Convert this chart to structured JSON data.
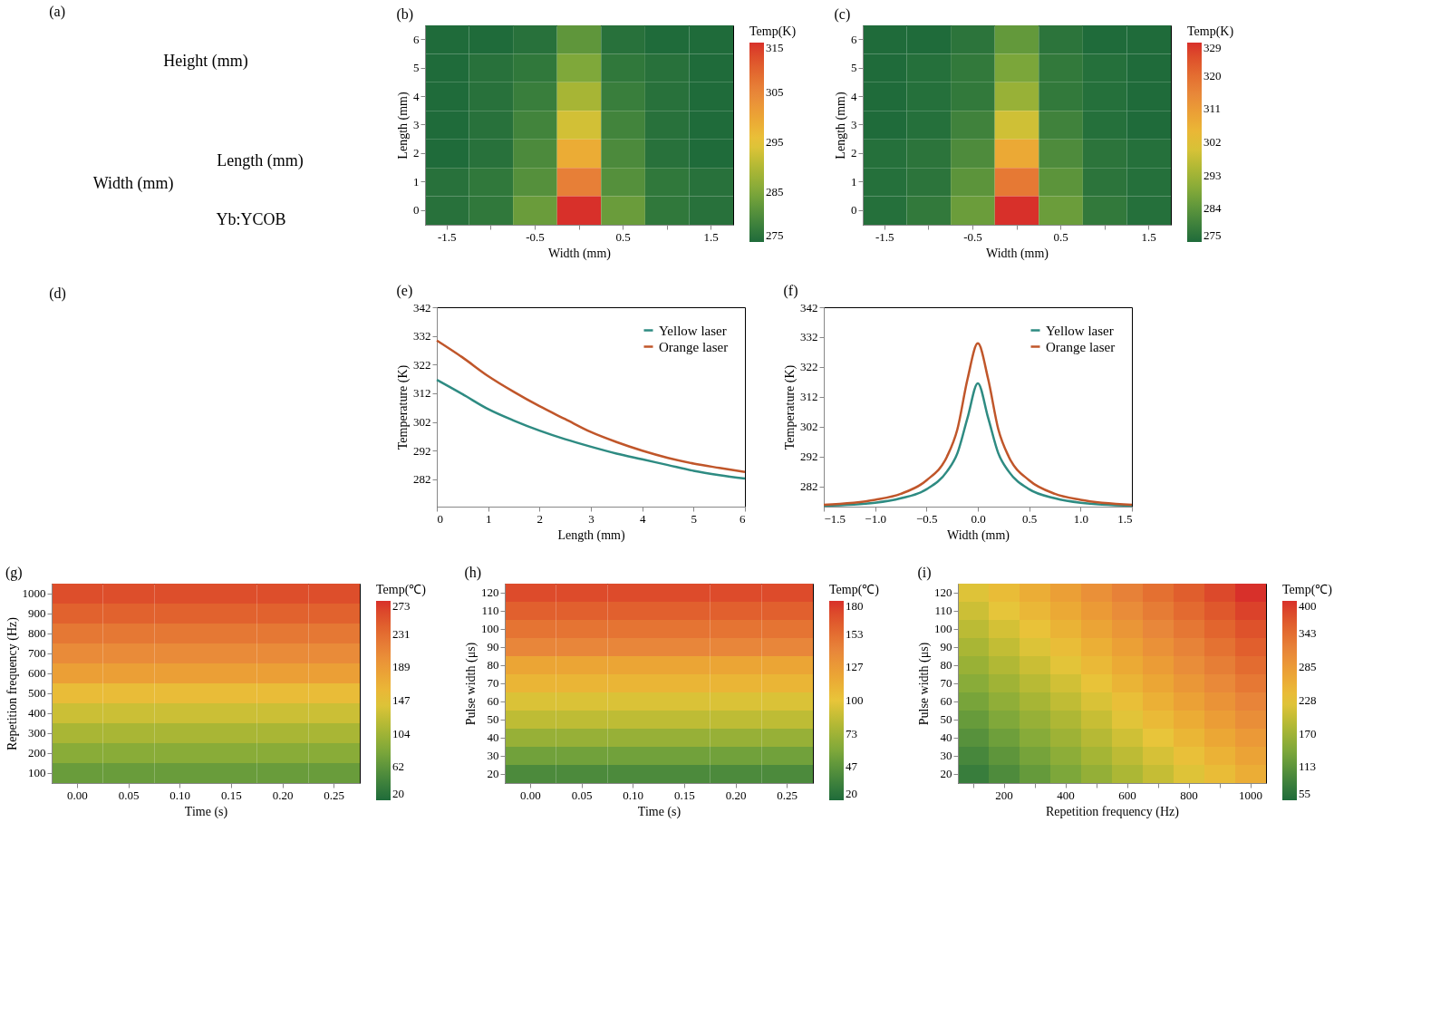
{
  "chart_data": [
    {
      "type": "other",
      "title": "(a)",
      "annotations": [
        "Height (mm)",
        "Length (mm)",
        "Width (mm)",
        "Yb:YCOB"
      ]
    },
    {
      "type": "heatmap",
      "title": "(b)",
      "xlabel": "Width (mm)",
      "ylabel": "Length (mm)",
      "clabel": "Temp(K)",
      "categories": [
        "-1.5",
        null,
        "-0.5",
        null,
        "0.5",
        null,
        "1.5"
      ],
      "y_categories": [
        "6",
        "5",
        "4",
        "3",
        "2",
        "1",
        "0"
      ],
      "clim": [
        275,
        315
      ],
      "cticks": [
        275,
        285,
        295,
        305,
        315
      ],
      "cells": [
        [
          275,
          275,
          276,
          282,
          276,
          275,
          275
        ],
        [
          275,
          276,
          277,
          285,
          277,
          276,
          275
        ],
        [
          275,
          276,
          278,
          289,
          278,
          276,
          275
        ],
        [
          275,
          276,
          279,
          293,
          279,
          276,
          275
        ],
        [
          275,
          276,
          280,
          299,
          280,
          276,
          275
        ],
        [
          276,
          277,
          281,
          306,
          281,
          277,
          276
        ],
        [
          276,
          277,
          283,
          315,
          283,
          277,
          276
        ]
      ]
    },
    {
      "type": "heatmap",
      "title": "(c)",
      "xlabel": "Width (mm)",
      "ylabel": "Length (mm)",
      "clabel": "Temp(K)",
      "categories": [
        "-1.5",
        null,
        "-0.5",
        null,
        "0.5",
        null,
        "1.5"
      ],
      "y_categories": [
        "6",
        "5",
        "4",
        "3",
        "2",
        "1",
        "0"
      ],
      "clim": [
        275,
        329
      ],
      "cticks": [
        275,
        284,
        293,
        302,
        311,
        320,
        329
      ],
      "cells": [
        [
          275,
          275,
          277,
          285,
          277,
          275,
          275
        ],
        [
          275,
          276,
          278,
          288,
          278,
          276,
          275
        ],
        [
          275,
          276,
          278,
          292,
          278,
          276,
          275
        ],
        [
          275,
          276,
          280,
          299,
          280,
          276,
          275
        ],
        [
          276,
          277,
          282,
          308,
          282,
          277,
          276
        ],
        [
          276,
          277,
          284,
          318,
          284,
          277,
          276
        ],
        [
          276,
          278,
          286,
          329,
          286,
          278,
          276
        ]
      ]
    },
    {
      "type": "other",
      "title": "(d)"
    },
    {
      "type": "line",
      "title": "(e)",
      "xlabel": "Length (mm)",
      "ylabel": "Temperature (K)",
      "x": [
        0,
        0.5,
        1,
        1.5,
        2,
        2.5,
        3,
        3.5,
        4,
        4.5,
        5,
        5.5,
        6
      ],
      "xlim": [
        0,
        6
      ],
      "xticks": [
        0,
        1,
        2,
        3,
        4,
        5,
        6
      ],
      "ylim": [
        272.5,
        342
      ],
      "yticks": [
        282,
        292,
        302,
        312,
        322,
        332,
        342
      ],
      "legend": "top right",
      "grid": false,
      "series": [
        {
          "name": "Yellow laser",
          "color": "#2e8b82",
          "values": [
            316.7,
            311.7,
            306.5,
            302.5,
            299,
            296,
            293.4,
            291,
            289,
            287,
            285,
            283.5,
            282.3
          ]
        },
        {
          "name": "Orange laser",
          "color": "#c0562a",
          "values": [
            330.4,
            324.5,
            318,
            312.5,
            307.5,
            303,
            298.5,
            295,
            292,
            289.5,
            287.5,
            286,
            284.6
          ]
        }
      ]
    },
    {
      "type": "line",
      "title": "(f)",
      "xlabel": "Width (mm)",
      "ylabel": "Temperature (K)",
      "x": [
        -1.5,
        -1,
        -0.75,
        -0.5,
        -0.3,
        -0.2,
        -0.1,
        0,
        0.1,
        0.2,
        0.3,
        0.5,
        0.75,
        1,
        1.5
      ],
      "xlim": [
        -1.5,
        1.5
      ],
      "xticks": [
        {
          "value": -1.5,
          "label": "−1.5"
        },
        {
          "value": -1,
          "label": "−1.0"
        },
        {
          "value": -0.5,
          "label": "−0.5"
        },
        {
          "value": 0,
          "label": "0.0"
        },
        0.5,
        {
          "value": 1,
          "label": "1.0"
        },
        1.5
      ],
      "ylim": [
        275.2,
        342
      ],
      "yticks": [
        282,
        292,
        302,
        312,
        322,
        332,
        342
      ],
      "legend": "top right",
      "grid": false,
      "series": [
        {
          "name": "Yellow laser",
          "color": "#2e8b82",
          "values": [
            275.5,
            276.5,
            278,
            281,
            287,
            293,
            305,
            316.5,
            305,
            293,
            287,
            281,
            278,
            276.5,
            275.5
          ]
        },
        {
          "name": "Orange laser",
          "color": "#c0562a",
          "values": [
            275.8,
            277.5,
            279.5,
            284,
            292,
            301,
            318,
            329.9,
            318,
            301,
            292,
            284,
            279.5,
            277.5,
            275.8
          ]
        }
      ]
    },
    {
      "type": "heatmap",
      "title": "(g)",
      "xlabel": "Time (s)",
      "ylabel": "Repetition frequency (Hz)",
      "clabel": "Temp(℃)",
      "categories": [
        "0.00",
        "0.05",
        "0.10",
        "0.15",
        "0.20",
        "0.25"
      ],
      "y_categories": [
        "1000",
        "900",
        "800",
        "700",
        "600",
        "500",
        "400",
        "300",
        "200",
        "100"
      ],
      "clim": [
        20,
        273
      ],
      "cticks": [
        20,
        62,
        104,
        147,
        189,
        231,
        273
      ],
      "cells": [
        [
          255,
          255,
          255,
          255,
          255,
          255
        ],
        [
          240,
          240,
          240,
          240,
          240,
          240
        ],
        [
          222,
          222,
          222,
          222,
          222,
          222
        ],
        [
          205,
          205,
          205,
          205,
          205,
          205
        ],
        [
          185,
          185,
          185,
          185,
          185,
          185
        ],
        [
          155,
          155,
          155,
          155,
          155,
          155
        ],
        [
          130,
          130,
          130,
          130,
          130,
          130
        ],
        [
          110,
          110,
          110,
          110,
          110,
          110
        ],
        [
          90,
          90,
          90,
          90,
          90,
          90
        ],
        [
          70,
          70,
          70,
          70,
          70,
          70
        ]
      ]
    },
    {
      "type": "heatmap",
      "title": "(h)",
      "xlabel": "Time (s)",
      "ylabel": "Pulse width (μs)",
      "clabel": "Temp(℃)",
      "categories": [
        "0.00",
        "0.05",
        "0.10",
        "0.15",
        "0.20",
        "0.25"
      ],
      "y_categories": [
        "120",
        "110",
        "100",
        "90",
        "80",
        "70",
        "60",
        "50",
        "40",
        "30",
        "20"
      ],
      "clim": [
        20,
        180
      ],
      "cticks": [
        20,
        47,
        73,
        100,
        127,
        153,
        180
      ],
      "cells": [
        [
          170,
          170,
          170,
          170,
          170,
          170
        ],
        [
          160,
          160,
          160,
          160,
          160,
          160
        ],
        [
          150,
          150,
          150,
          150,
          150,
          150
        ],
        [
          140,
          140,
          140,
          140,
          140,
          140
        ],
        [
          120,
          120,
          120,
          120,
          120,
          120
        ],
        [
          110,
          110,
          110,
          110,
          110,
          110
        ],
        [
          95,
          95,
          95,
          95,
          95,
          95
        ],
        [
          85,
          85,
          85,
          85,
          85,
          85
        ],
        [
          70,
          70,
          70,
          70,
          70,
          70
        ],
        [
          55,
          55,
          55,
          55,
          55,
          55
        ],
        [
          40,
          40,
          40,
          40,
          40,
          40
        ]
      ]
    },
    {
      "type": "heatmap",
      "title": "(i)",
      "xlabel": "Repetition frequency (Hz)",
      "ylabel": "Pulse width (μs)",
      "clabel": "Temp(℃)",
      "categories": [
        null,
        "200",
        null,
        "400",
        null,
        "600",
        null,
        "800",
        null,
        "1000"
      ],
      "y_categories": [
        "120",
        "110",
        "100",
        "90",
        "80",
        "70",
        "60",
        "50",
        "40",
        "30",
        "20"
      ],
      "clim": [
        55,
        400
      ],
      "cticks": [
        55,
        113,
        170,
        228,
        285,
        343,
        400
      ],
      "cells": [
        [
          220,
          240,
          260,
          280,
          300,
          320,
          340,
          360,
          380,
          400
        ],
        [
          206,
          226,
          246,
          266,
          286,
          306,
          326,
          346,
          366,
          386
        ],
        [
          192,
          212,
          232,
          252,
          272,
          292,
          312,
          332,
          352,
          372
        ],
        [
          178,
          198,
          218,
          238,
          258,
          278,
          298,
          318,
          338,
          358
        ],
        [
          164,
          184,
          204,
          224,
          244,
          264,
          284,
          304,
          324,
          344
        ],
        [
          150,
          170,
          190,
          210,
          230,
          250,
          270,
          290,
          310,
          330
        ],
        [
          136,
          156,
          176,
          196,
          216,
          236,
          256,
          276,
          296,
          316
        ],
        [
          122,
          142,
          162,
          182,
          202,
          222,
          242,
          262,
          282,
          302
        ],
        [
          108,
          128,
          148,
          168,
          188,
          208,
          228,
          248,
          268,
          288
        ],
        [
          94,
          114,
          134,
          154,
          174,
          194,
          214,
          234,
          254,
          274
        ],
        [
          80,
          100,
          120,
          140,
          160,
          180,
          200,
          220,
          240,
          260
        ]
      ]
    }
  ]
}
